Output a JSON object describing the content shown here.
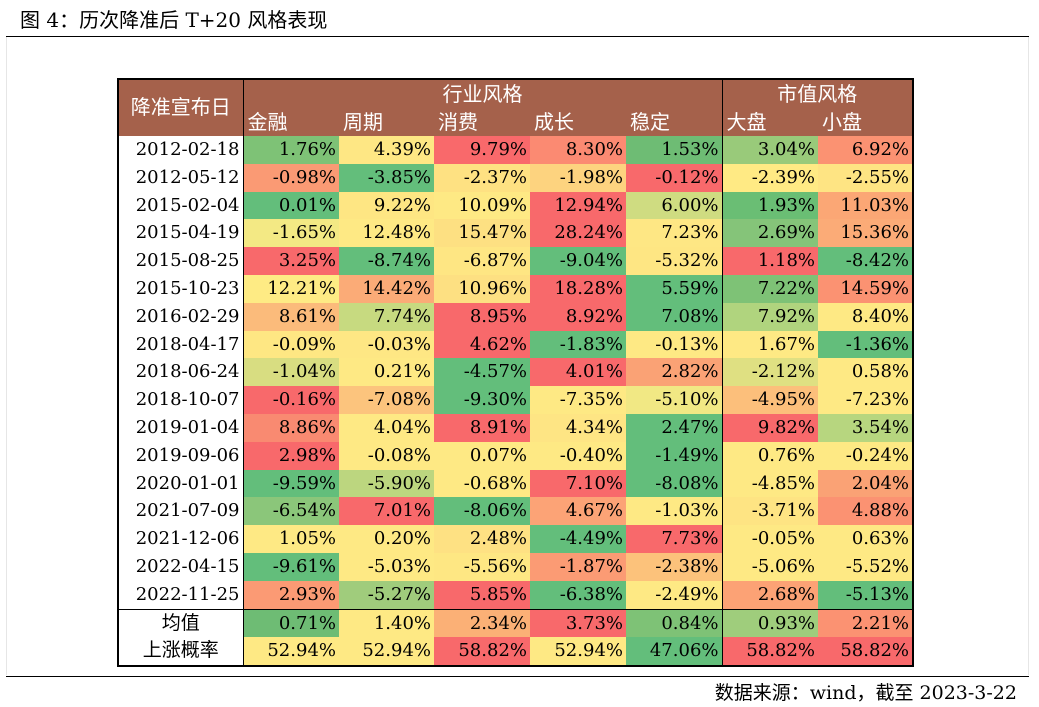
{
  "title": "图 4：历次降准后 T+20 风格表现",
  "source": "数据来源：wind，截至 2023-3-22",
  "table": {
    "date_header": "降准宣布日",
    "groups": [
      {
        "label": "行业风格",
        "span": 5
      },
      {
        "label": "市值风格",
        "span": 2
      }
    ],
    "columns": [
      "金融",
      "周期",
      "消费",
      "成长",
      "稳定",
      "大盘",
      "小盘"
    ],
    "rows": [
      {
        "date": "2012-02-18",
        "values": [
          "1.76%",
          "4.39%",
          "9.79%",
          "8.30%",
          "1.53%",
          "3.04%",
          "6.92%"
        ],
        "colors": [
          "#7ec276",
          "#fee784",
          "#f9696b",
          "#fb8a72",
          "#6ebc74",
          "#99ca7a",
          "#fb9272"
        ]
      },
      {
        "date": "2012-05-12",
        "values": [
          "-0.98%",
          "-3.85%",
          "-2.37%",
          "-1.98%",
          "-0.12%",
          "-2.39%",
          "-2.55%"
        ],
        "colors": [
          "#fa9a74",
          "#63be7b",
          "#fee182",
          "#fdd37f",
          "#f8696b",
          "#ffea84",
          "#fee483"
        ]
      },
      {
        "date": "2015-02-04",
        "values": [
          "0.01%",
          "9.22%",
          "10.09%",
          "12.94%",
          "6.00%",
          "1.93%",
          "11.03%"
        ],
        "colors": [
          "#63be7b",
          "#fee683",
          "#fee984",
          "#f8696b",
          "#cfdc81",
          "#6abe74",
          "#fba775"
        ]
      },
      {
        "date": "2015-04-19",
        "values": [
          "-1.65%",
          "12.48%",
          "15.47%",
          "28.24%",
          "7.23%",
          "2.69%",
          "15.36%"
        ],
        "colors": [
          "#f3e984",
          "#fee984",
          "#fde082",
          "#f8696b",
          "#fee784",
          "#85c479",
          "#fbab77"
        ]
      },
      {
        "date": "2015-08-25",
        "values": [
          "3.25%",
          "-8.74%",
          "-6.87%",
          "-9.04%",
          "-5.32%",
          "1.18%",
          "-8.42%"
        ],
        "colors": [
          "#f8696b",
          "#63be7b",
          "#fee683",
          "#63be7b",
          "#fee683",
          "#f8696b",
          "#63be7b"
        ]
      },
      {
        "date": "2015-10-23",
        "values": [
          "12.21%",
          "14.42%",
          "10.96%",
          "18.28%",
          "5.59%",
          "7.22%",
          "14.59%"
        ],
        "colors": [
          "#feeb84",
          "#fbab77",
          "#fde082",
          "#f8696b",
          "#63be7b",
          "#7ec276",
          "#fb9272"
        ]
      },
      {
        "date": "2016-02-29",
        "values": [
          "8.61%",
          "7.74%",
          "8.95%",
          "8.92%",
          "7.08%",
          "7.92%",
          "8.40%"
        ],
        "colors": [
          "#fbbb7b",
          "#c7da80",
          "#f8696b",
          "#f8696b",
          "#63be7b",
          "#b0d47e",
          "#fee984"
        ]
      },
      {
        "date": "2018-04-17",
        "values": [
          "-0.09%",
          "-0.03%",
          "4.62%",
          "-1.83%",
          "-0.13%",
          "1.67%",
          "-1.36%"
        ],
        "colors": [
          "#fee783",
          "#fee784",
          "#f8696b",
          "#63be7b",
          "#fee984",
          "#fee984",
          "#63be7b"
        ]
      },
      {
        "date": "2018-06-24",
        "values": [
          "-1.04%",
          "0.21%",
          "-4.57%",
          "4.01%",
          "2.82%",
          "-2.12%",
          "0.58%"
        ],
        "colors": [
          "#d8dd81",
          "#fee984",
          "#63be7b",
          "#f8696b",
          "#faa275",
          "#dfe082",
          "#fee984"
        ]
      },
      {
        "date": "2018-10-07",
        "values": [
          "-0.16%",
          "-7.08%",
          "-9.30%",
          "-7.35%",
          "-5.10%",
          "-4.95%",
          "-7.23%"
        ],
        "colors": [
          "#f8696b",
          "#fcc47d",
          "#63be7b",
          "#fee984",
          "#f1e884",
          "#fcbf7b",
          "#fee984"
        ]
      },
      {
        "date": "2019-01-04",
        "values": [
          "8.86%",
          "4.04%",
          "8.91%",
          "4.34%",
          "2.47%",
          "9.82%",
          "3.54%"
        ],
        "colors": [
          "#f98a71",
          "#fee984",
          "#f8696b",
          "#fee584",
          "#63be7b",
          "#f8696b",
          "#b7d67f"
        ]
      },
      {
        "date": "2019-09-06",
        "values": [
          "2.98%",
          "-0.08%",
          "0.07%",
          "-0.40%",
          "-1.49%",
          "0.76%",
          "-0.24%"
        ],
        "colors": [
          "#f8696b",
          "#fee984",
          "#fee984",
          "#fee984",
          "#63be7b",
          "#fee984",
          "#fee984"
        ]
      },
      {
        "date": "2020-01-01",
        "values": [
          "-9.59%",
          "-5.90%",
          "-0.68%",
          "7.10%",
          "-8.08%",
          "-4.85%",
          "2.04%"
        ],
        "colors": [
          "#63be7b",
          "#bcd67f",
          "#fee984",
          "#f8696b",
          "#63be7b",
          "#fee984",
          "#faa275"
        ]
      },
      {
        "date": "2021-07-09",
        "values": [
          "-6.54%",
          "7.01%",
          "-8.06%",
          "4.67%",
          "-1.03%",
          "-3.71%",
          "4.88%"
        ],
        "colors": [
          "#8bc67a",
          "#f8696b",
          "#63be7b",
          "#fca376",
          "#fee984",
          "#fee483",
          "#fb9272"
        ]
      },
      {
        "date": "2021-12-06",
        "values": [
          "1.05%",
          "0.20%",
          "2.48%",
          "-4.49%",
          "7.73%",
          "-0.05%",
          "0.63%"
        ],
        "colors": [
          "#fee984",
          "#fee984",
          "#fee183",
          "#63be7b",
          "#f8696b",
          "#fee984",
          "#fee984"
        ]
      },
      {
        "date": "2022-04-15",
        "values": [
          "-9.61%",
          "-5.03%",
          "-5.56%",
          "-1.87%",
          "-2.38%",
          "-5.06%",
          "-5.52%"
        ],
        "colors": [
          "#63be7b",
          "#fee984",
          "#fee783",
          "#fb9b74",
          "#fcc27b",
          "#fee984",
          "#fee984"
        ]
      },
      {
        "date": "2022-11-25",
        "values": [
          "2.93%",
          "-5.27%",
          "5.85%",
          "-6.38%",
          "-2.49%",
          "2.68%",
          "-5.13%"
        ],
        "colors": [
          "#fb9a74",
          "#a0cc7c",
          "#f8696b",
          "#63be7b",
          "#fee984",
          "#fca275",
          "#63be7b"
        ]
      }
    ],
    "summary": [
      {
        "label": "均值",
        "values": [
          "0.71%",
          "1.40%",
          "2.34%",
          "3.73%",
          "0.84%",
          "0.93%",
          "2.21%"
        ],
        "colors": [
          "#6ebc74",
          "#fee984",
          "#fbb076",
          "#f8696b",
          "#7ec276",
          "#9fcd7c",
          "#fb9272"
        ]
      },
      {
        "label": "上涨概率",
        "values": [
          "52.94%",
          "52.94%",
          "58.82%",
          "52.94%",
          "47.06%",
          "58.82%",
          "58.82%"
        ],
        "colors": [
          "#fee984",
          "#fee984",
          "#f8696b",
          "#fee984",
          "#63be7b",
          "#f8696b",
          "#f8696b"
        ]
      }
    ]
  }
}
